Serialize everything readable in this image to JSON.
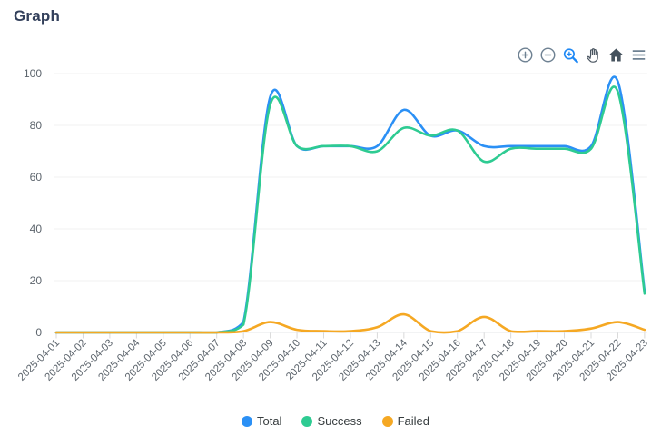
{
  "title": "Graph",
  "toolbar": {
    "icons": [
      {
        "name": "zoom-in"
      },
      {
        "name": "zoom-out"
      },
      {
        "name": "selection-zoom",
        "active": true
      },
      {
        "name": "pan"
      },
      {
        "name": "reset-zoom-home"
      },
      {
        "name": "menu"
      }
    ]
  },
  "theme": {
    "title_color": "#33405b",
    "grid_color": "#f2f2f2",
    "axis_line_color": "#e4e7ea",
    "tick_color": "#d9d9d9",
    "axis_label_color": "#5d656d",
    "legend_text_color": "#373d3f",
    "toolbar_gray": "#6e8192",
    "toolbar_dark": "#46535e",
    "toolbar_active_blue": "#1e88f5"
  },
  "chart_data": {
    "type": "line",
    "curve": "smooth",
    "grid": "horizontal",
    "legend_position": "bottom",
    "ylim": [
      0,
      100
    ],
    "yticks": [
      0,
      20,
      40,
      60,
      80,
      100
    ],
    "x": [
      "2025-04-01",
      "2025-04-02",
      "2025-04-03",
      "2025-04-04",
      "2025-04-05",
      "2025-04-06",
      "2025-04-07",
      "2025-04-08",
      "2025-04-09",
      "2025-04-10",
      "2025-04-11",
      "2025-04-12",
      "2025-04-13",
      "2025-04-14",
      "2025-04-15",
      "2025-04-16",
      "2025-04-17",
      "2025-04-18",
      "2025-04-19",
      "2025-04-20",
      "2025-04-21",
      "2025-04-22",
      "2025-04-23"
    ],
    "series": [
      {
        "name": "Total",
        "color": "#2b90f5",
        "values": [
          0,
          0,
          0,
          0,
          0,
          0,
          0,
          4,
          91,
          72,
          72,
          72,
          72,
          86,
          76,
          78,
          72,
          72,
          72,
          72,
          72,
          97,
          16
        ]
      },
      {
        "name": "Success",
        "color": "#2ecb92",
        "values": [
          0,
          0,
          0,
          0,
          0,
          0,
          0,
          3,
          88,
          72,
          72,
          72,
          70,
          79,
          76,
          78,
          66,
          71,
          71,
          71,
          71,
          93,
          15
        ]
      },
      {
        "name": "Failed",
        "color": "#f5a823",
        "values": [
          0,
          0,
          0,
          0,
          0,
          0,
          0,
          0.5,
          4,
          1,
          0.5,
          0.5,
          2,
          7,
          0.5,
          0.5,
          6,
          0.5,
          0.5,
          0.5,
          1.5,
          4,
          1
        ]
      }
    ]
  }
}
